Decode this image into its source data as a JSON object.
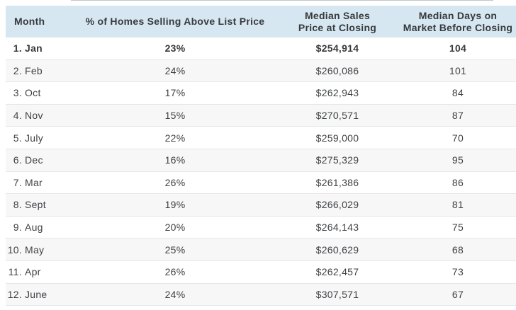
{
  "table": {
    "columns": [
      {
        "label": "Month"
      },
      {
        "label": "% of Homes Selling Above List Price"
      },
      {
        "label": "Median Sales\nPrice at Closing"
      },
      {
        "label": "Median Days on\nMarket Before Closing"
      }
    ],
    "rows": [
      {
        "num": "1.",
        "month": "Jan",
        "pct": "23%",
        "price": "$254,914",
        "days": "104"
      },
      {
        "num": "2.",
        "month": "Feb",
        "pct": "24%",
        "price": "$260,086",
        "days": "101"
      },
      {
        "num": "3.",
        "month": "Oct",
        "pct": "17%",
        "price": "$262,943",
        "days": "84"
      },
      {
        "num": "4.",
        "month": "Nov",
        "pct": "15%",
        "price": "$270,571",
        "days": "87"
      },
      {
        "num": "5.",
        "month": "July",
        "pct": "22%",
        "price": "$259,000",
        "days": "70"
      },
      {
        "num": "6.",
        "month": "Dec",
        "pct": "16%",
        "price": "$275,329",
        "days": "95"
      },
      {
        "num": "7.",
        "month": "Mar",
        "pct": "26%",
        "price": "$261,386",
        "days": "86"
      },
      {
        "num": "8.",
        "month": "Sept",
        "pct": "19%",
        "price": "$266,029",
        "days": "81"
      },
      {
        "num": "9.",
        "month": "Aug",
        "pct": "20%",
        "price": "$264,143",
        "days": "75"
      },
      {
        "num": "10.",
        "month": "May",
        "pct": "25%",
        "price": "$260,629",
        "days": "68"
      },
      {
        "num": "11.",
        "month": "Apr",
        "pct": "26%",
        "price": "$262,457",
        "days": "73"
      },
      {
        "num": "12.",
        "month": "June",
        "pct": "24%",
        "price": "$307,571",
        "days": "67"
      }
    ],
    "colors": {
      "header_bg": "#d7e7f1",
      "row_alt_bg": "#f7f7f8",
      "divider": "#e6e7e8",
      "text": "#3f4245"
    }
  },
  "chart_data": {
    "type": "table",
    "title": "",
    "columns": [
      "Month",
      "% of Homes Selling Above List Price",
      "Median Sales Price at Closing",
      "Median Days on Market Before Closing"
    ],
    "rows": [
      [
        "1. Jan",
        "23%",
        "$254,914",
        "104"
      ],
      [
        "2. Feb",
        "24%",
        "$260,086",
        "101"
      ],
      [
        "3. Oct",
        "17%",
        "$262,943",
        "84"
      ],
      [
        "4. Nov",
        "15%",
        "$270,571",
        "87"
      ],
      [
        "5. July",
        "22%",
        "$259,000",
        "70"
      ],
      [
        "6. Dec",
        "16%",
        "$275,329",
        "95"
      ],
      [
        "7. Mar",
        "26%",
        "$261,386",
        "86"
      ],
      [
        "8. Sept",
        "19%",
        "$266,029",
        "81"
      ],
      [
        "9. Aug",
        "20%",
        "$264,143",
        "75"
      ],
      [
        "10. May",
        "25%",
        "$260,629",
        "68"
      ],
      [
        "11. Apr",
        "26%",
        "$262,457",
        "73"
      ],
      [
        "12. June",
        "24%",
        "$307,571",
        "67"
      ]
    ],
    "months": [
      "Jan",
      "Feb",
      "Oct",
      "Nov",
      "July",
      "Dec",
      "Mar",
      "Sept",
      "Aug",
      "May",
      "Apr",
      "June"
    ],
    "pct_above_list": [
      23,
      24,
      17,
      15,
      22,
      16,
      26,
      19,
      20,
      25,
      26,
      24
    ],
    "median_sales_price": [
      254914,
      260086,
      262943,
      270571,
      259000,
      275329,
      261386,
      266029,
      264143,
      260629,
      262457,
      307571
    ],
    "median_days_on_market": [
      104,
      101,
      84,
      87,
      70,
      95,
      86,
      81,
      75,
      68,
      73,
      67
    ]
  }
}
